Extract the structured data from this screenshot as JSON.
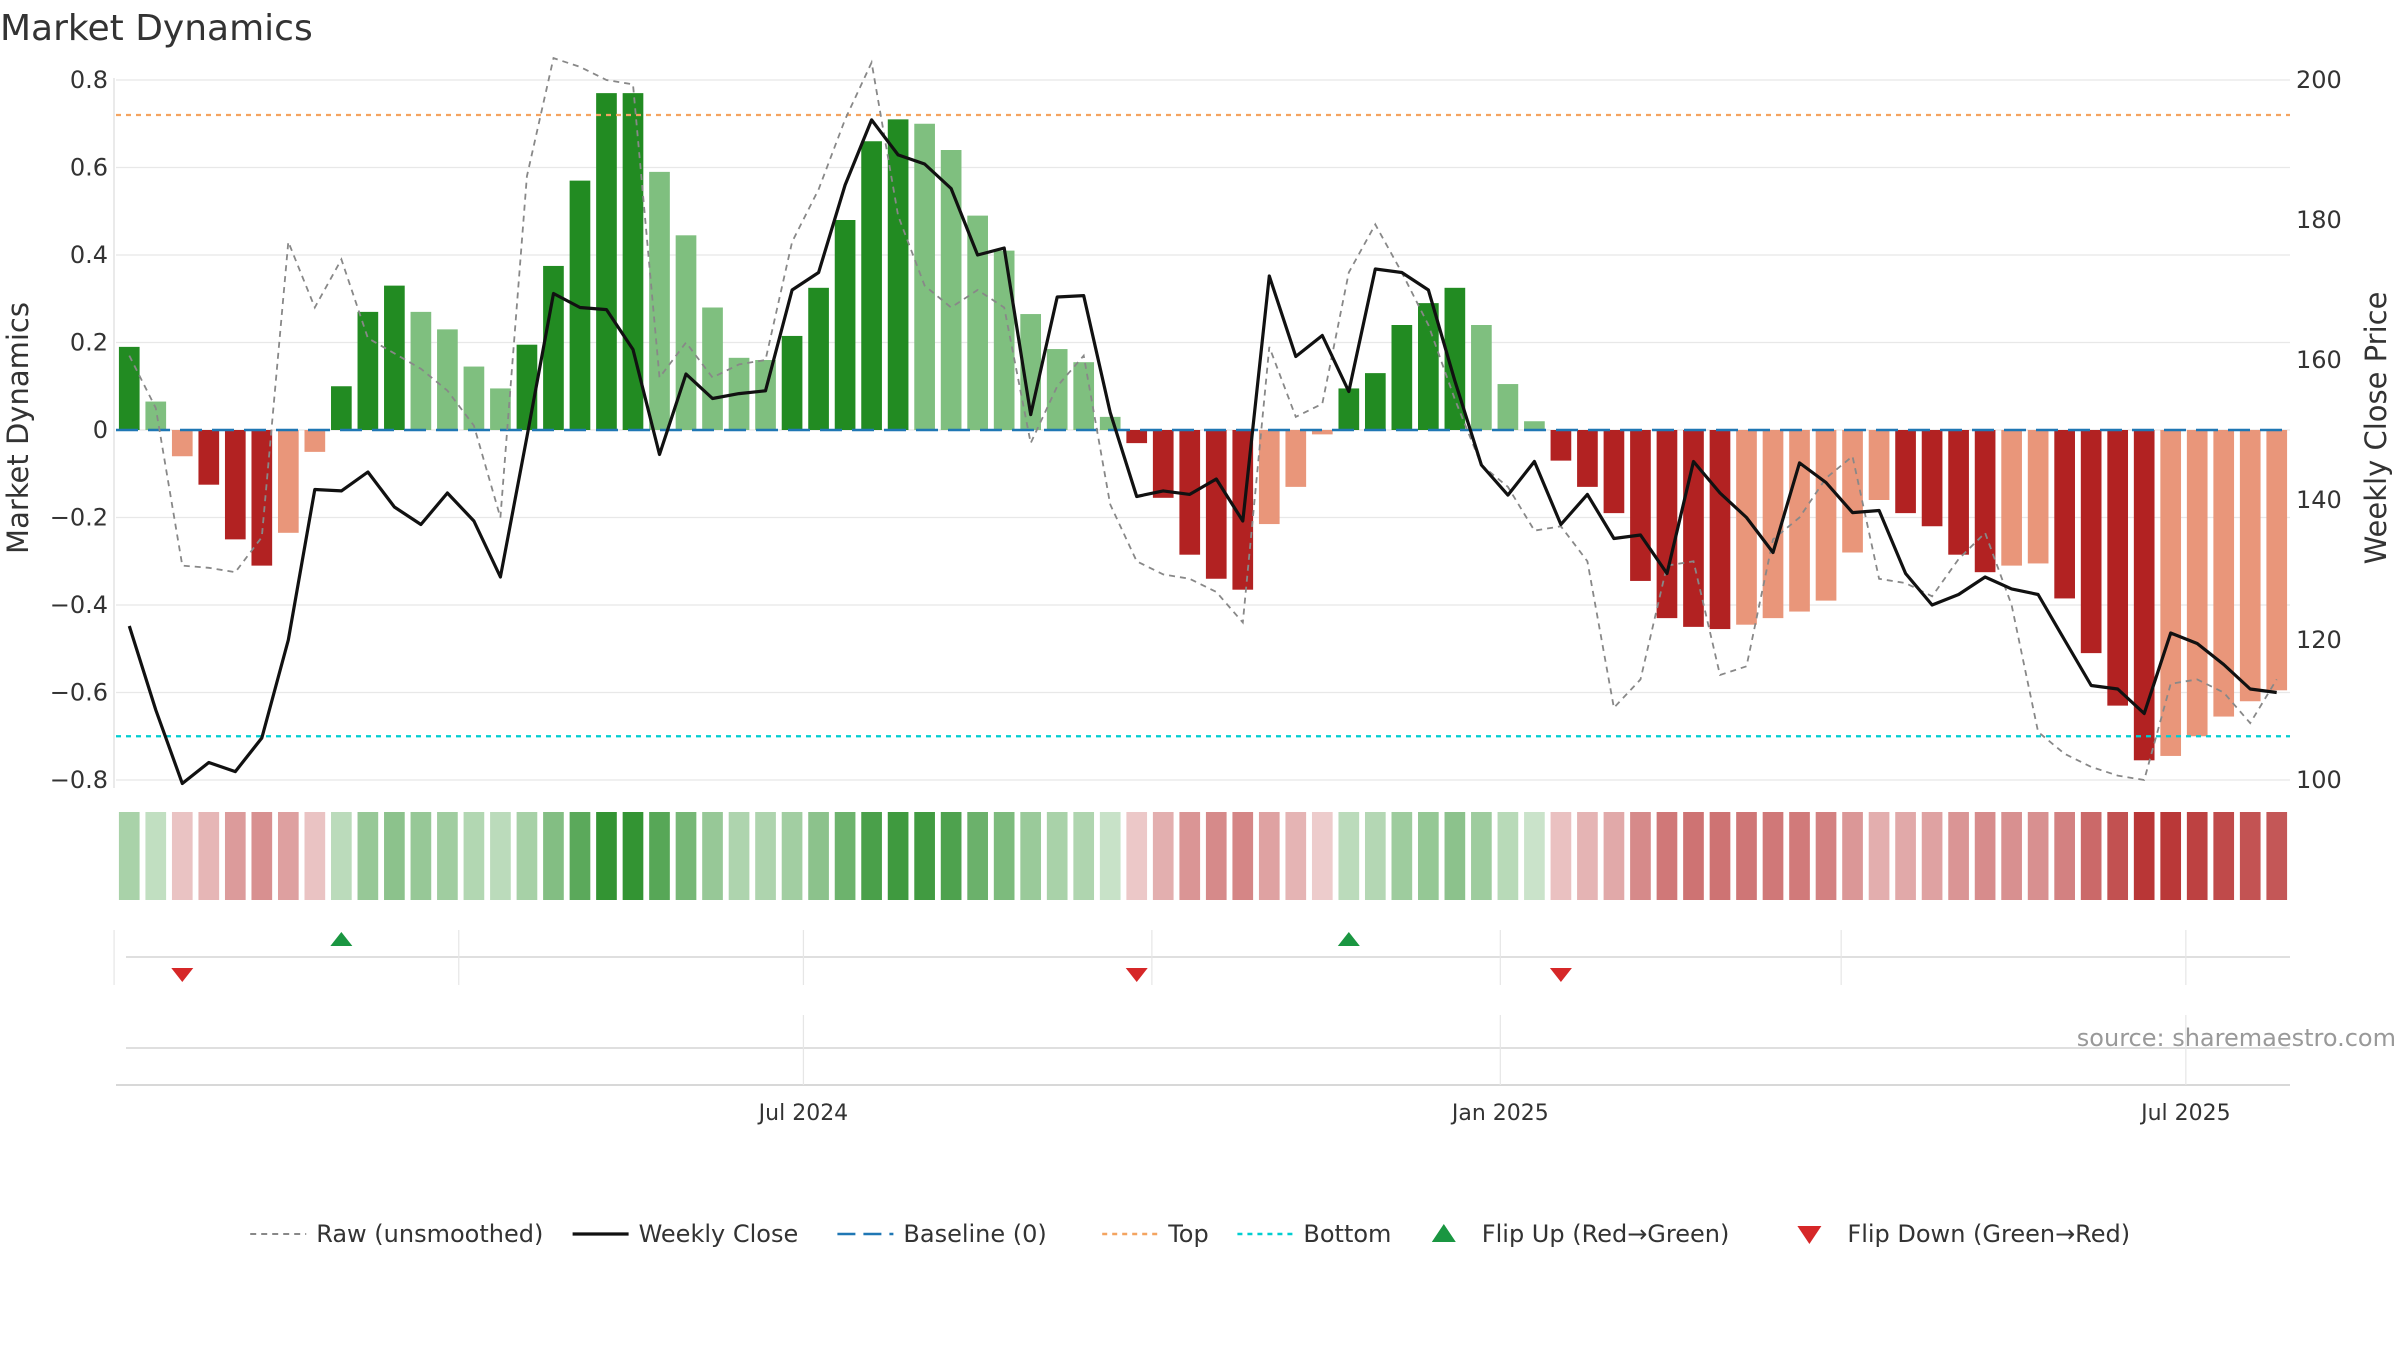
{
  "chart_data": {
    "type": "bar",
    "title": "Market Dynamics",
    "ylabel": "Market Dynamics",
    "y2label": "Weekly Close Price",
    "ylim": [
      -0.8,
      0.8
    ],
    "y2lim": [
      100,
      200
    ],
    "ytick_labels": [
      "0.8",
      "0.6",
      "0.4",
      "0.2",
      "0",
      "−0.2",
      "−0.4",
      "−0.6",
      "−0.8"
    ],
    "y2tick_labels": [
      "200",
      "180",
      "160",
      "140",
      "120",
      "100"
    ],
    "xtick_labels": [
      "Jul 2024",
      "Jan 2025",
      "Jul 2025"
    ],
    "x_start": "2024-01-05",
    "interval_days": 7,
    "top_level": 0.72,
    "bottom_level": -0.7,
    "baseline": 0,
    "colors": {
      "strong_green": "#228B22",
      "light_green": "#7FBF7F",
      "strong_red": "#B22222",
      "light_red": "#E9967A",
      "top_line": "#F4A460",
      "bottom_line": "#00CED1",
      "baseline": "#1F77B4",
      "close_line": "#111111",
      "raw_line": "#888888",
      "flip_up": "#1A9641",
      "flip_down": "#D62728"
    },
    "series": [
      {
        "name": "Market Dynamics",
        "values": [
          0.19,
          0.065,
          -0.06,
          -0.125,
          -0.25,
          -0.31,
          -0.235,
          -0.05,
          0.1,
          0.27,
          0.33,
          0.27,
          0.23,
          0.145,
          0.095,
          0.195,
          0.375,
          0.57,
          0.77,
          0.77,
          0.59,
          0.445,
          0.28,
          0.165,
          0.16,
          0.215,
          0.325,
          0.48,
          0.66,
          0.71,
          0.7,
          0.64,
          0.49,
          0.41,
          0.265,
          0.185,
          0.155,
          0.03,
          -0.03,
          -0.155,
          -0.285,
          -0.34,
          -0.365,
          -0.215,
          -0.13,
          -0.01,
          0.095,
          0.13,
          0.24,
          0.29,
          0.325,
          0.24,
          0.105,
          0.02,
          -0.07,
          -0.13,
          -0.19,
          -0.345,
          -0.43,
          -0.45,
          -0.455,
          -0.445,
          -0.43,
          -0.415,
          -0.39,
          -0.28,
          -0.16,
          -0.19,
          -0.22,
          -0.285,
          -0.325,
          -0.31,
          -0.305,
          -0.385,
          -0.51,
          -0.63,
          -0.755,
          -0.745,
          -0.7,
          -0.655,
          -0.62,
          -0.595
        ]
      },
      {
        "name": "Weekly Close",
        "values": [
          122,
          110,
          99.5,
          102.5,
          101.2,
          106,
          120,
          141.5,
          141.3,
          144,
          139,
          136.5,
          141,
          137,
          129,
          149,
          169.5,
          167.5,
          167.2,
          161.5,
          146.5,
          158,
          154.5,
          155.2,
          155.6,
          170,
          172.5,
          185,
          194.3,
          189.3,
          188,
          184.5,
          175,
          176,
          152.2,
          169,
          169.2,
          152.5,
          140.5,
          141.3,
          140.8,
          143,
          137,
          172,
          160.5,
          163.5,
          155.5,
          173,
          172.5,
          170,
          157,
          145,
          140.7,
          145.5,
          136.5,
          140.8,
          134.5,
          135,
          129.5,
          145.5,
          141,
          137.5,
          132.5,
          145.3,
          142.5,
          138.2,
          138.5,
          129.5,
          125,
          126.5,
          129,
          127.3,
          126.5,
          120,
          113.5,
          113,
          109.5,
          121,
          119.5,
          116.5,
          113,
          112.5
        ]
      },
      {
        "name": "Raw (unsmoothed)",
        "values": [
          0.17,
          0.05,
          -0.31,
          -0.315,
          -0.325,
          -0.245,
          0.43,
          0.28,
          0.39,
          0.21,
          0.175,
          0.14,
          0.09,
          0.01,
          -0.2,
          0.58,
          0.85,
          0.83,
          0.8,
          0.79,
          0.12,
          0.2,
          0.12,
          0.15,
          0.16,
          0.43,
          0.55,
          0.71,
          0.84,
          0.49,
          0.33,
          0.28,
          0.32,
          0.28,
          -0.03,
          0.1,
          0.17,
          -0.17,
          -0.3,
          -0.33,
          -0.34,
          -0.37,
          -0.44,
          0.19,
          0.03,
          0.06,
          0.36,
          0.47,
          0.36,
          0.24,
          0.07,
          -0.08,
          -0.13,
          -0.23,
          -0.22,
          -0.3,
          -0.635,
          -0.57,
          -0.31,
          -0.3,
          -0.56,
          -0.54,
          -0.25,
          -0.2,
          -0.11,
          -0.06,
          -0.34,
          -0.35,
          -0.38,
          -0.295,
          -0.235,
          -0.4,
          -0.69,
          -0.74,
          -0.77,
          -0.79,
          -0.8,
          -0.58,
          -0.57,
          -0.6,
          -0.67,
          -0.57
        ]
      },
      {
        "name": "Baseline (0)"
      },
      {
        "name": "Top"
      },
      {
        "name": "Bottom"
      }
    ],
    "flip_up_indices": [
      8,
      46
    ],
    "flip_down_indices": [
      2,
      38,
      54
    ],
    "legend": {
      "placement": "bottom-center",
      "entries": [
        "Raw (unsmoothed)",
        "Weekly Close",
        "Baseline (0)",
        "Top",
        "Bottom",
        "Flip Up (Red→Green)",
        "Flip Down (Green→Red)"
      ]
    },
    "source": "source: sharemaestro.com"
  }
}
